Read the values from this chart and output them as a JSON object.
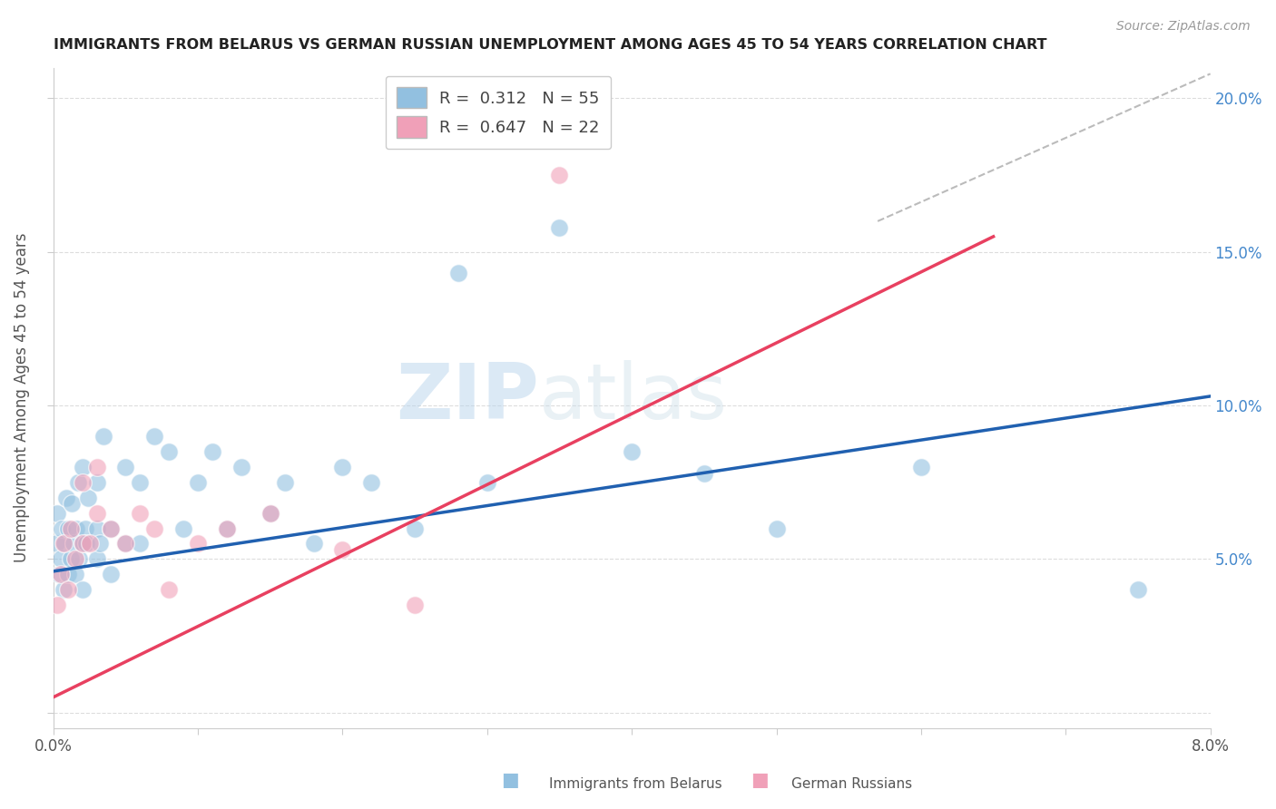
{
  "title": "IMMIGRANTS FROM BELARUS VS GERMAN RUSSIAN UNEMPLOYMENT AMONG AGES 45 TO 54 YEARS CORRELATION CHART",
  "source": "Source: ZipAtlas.com",
  "ylabel": "Unemployment Among Ages 45 to 54 years",
  "xmin": 0.0,
  "xmax": 0.08,
  "ymin": -0.005,
  "ymax": 0.21,
  "legend_r1": "0.312",
  "legend_n1": "55",
  "legend_r2": "0.647",
  "legend_n2": "22",
  "color_blue": "#92c0e0",
  "color_pink": "#f0a0b8",
  "watermark_zip": "ZIP",
  "watermark_atlas": "atlas",
  "blue_scatter_x": [
    0.0002,
    0.0003,
    0.0004,
    0.0005,
    0.0006,
    0.0007,
    0.0008,
    0.0009,
    0.001,
    0.001,
    0.0012,
    0.0013,
    0.0014,
    0.0015,
    0.0016,
    0.0017,
    0.0018,
    0.002,
    0.002,
    0.002,
    0.0022,
    0.0023,
    0.0024,
    0.003,
    0.003,
    0.003,
    0.0032,
    0.0035,
    0.004,
    0.004,
    0.005,
    0.005,
    0.006,
    0.006,
    0.007,
    0.008,
    0.009,
    0.01,
    0.011,
    0.012,
    0.013,
    0.015,
    0.016,
    0.018,
    0.02,
    0.022,
    0.025,
    0.028,
    0.03,
    0.035,
    0.04,
    0.045,
    0.05,
    0.06,
    0.075
  ],
  "blue_scatter_y": [
    0.055,
    0.065,
    0.045,
    0.05,
    0.06,
    0.04,
    0.055,
    0.07,
    0.045,
    0.06,
    0.05,
    0.068,
    0.055,
    0.045,
    0.06,
    0.075,
    0.05,
    0.04,
    0.055,
    0.08,
    0.06,
    0.055,
    0.07,
    0.05,
    0.06,
    0.075,
    0.055,
    0.09,
    0.045,
    0.06,
    0.055,
    0.08,
    0.055,
    0.075,
    0.09,
    0.085,
    0.06,
    0.075,
    0.085,
    0.06,
    0.08,
    0.065,
    0.075,
    0.055,
    0.08,
    0.075,
    0.06,
    0.143,
    0.075,
    0.158,
    0.085,
    0.078,
    0.06,
    0.08,
    0.04
  ],
  "pink_scatter_x": [
    0.0003,
    0.0005,
    0.0007,
    0.001,
    0.0012,
    0.0015,
    0.002,
    0.002,
    0.0025,
    0.003,
    0.003,
    0.004,
    0.005,
    0.006,
    0.007,
    0.008,
    0.01,
    0.012,
    0.015,
    0.02,
    0.025,
    0.035
  ],
  "pink_scatter_y": [
    0.035,
    0.045,
    0.055,
    0.04,
    0.06,
    0.05,
    0.055,
    0.075,
    0.055,
    0.065,
    0.08,
    0.06,
    0.055,
    0.065,
    0.06,
    0.04,
    0.055,
    0.06,
    0.065,
    0.053,
    0.035,
    0.175
  ],
  "blue_line_x": [
    0.0,
    0.08
  ],
  "blue_line_y": [
    0.046,
    0.103
  ],
  "pink_line_x": [
    0.0,
    0.065
  ],
  "pink_line_y": [
    0.005,
    0.155
  ],
  "diag_line_x": [
    0.057,
    0.08
  ],
  "diag_line_y": [
    0.16,
    0.208
  ]
}
